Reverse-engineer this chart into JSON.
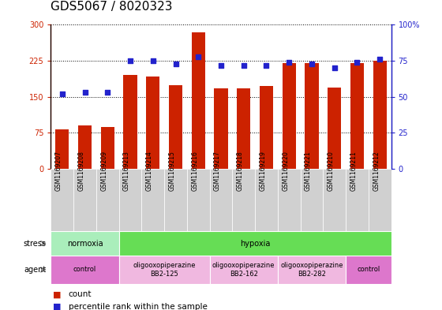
{
  "title": "GDS5067 / 8020323",
  "samples": [
    "GSM1169207",
    "GSM1169208",
    "GSM1169209",
    "GSM1169213",
    "GSM1169214",
    "GSM1169215",
    "GSM1169216",
    "GSM1169217",
    "GSM1169218",
    "GSM1169219",
    "GSM1169220",
    "GSM1169221",
    "GSM1169210",
    "GSM1169211",
    "GSM1169212"
  ],
  "counts": [
    82,
    90,
    88,
    195,
    193,
    175,
    285,
    168,
    167,
    172,
    220,
    220,
    170,
    220,
    225
  ],
  "percentile_ranks": [
    52,
    53,
    53,
    75,
    75,
    73,
    78,
    72,
    72,
    72,
    74,
    73,
    70,
    74,
    76
  ],
  "ylim_left": [
    0,
    300
  ],
  "ylim_right": [
    0,
    100
  ],
  "yticks_left": [
    0,
    75,
    150,
    225,
    300
  ],
  "ytick_labels_left": [
    "0",
    "75",
    "150",
    "225",
    "300"
  ],
  "yticks_right": [
    0,
    25,
    50,
    75,
    100
  ],
  "ytick_labels_right": [
    "0",
    "25",
    "50",
    "75",
    "100%"
  ],
  "bar_color": "#cc2200",
  "dot_color": "#2222cc",
  "bg_color": "#ffffff",
  "plot_bg_color": "#ffffff",
  "tick_label_bg": "#dddddd",
  "stress_row": [
    {
      "label": "normoxia",
      "start": 0,
      "end": 3,
      "color": "#aaeebb"
    },
    {
      "label": "hypoxia",
      "start": 3,
      "end": 15,
      "color": "#66dd55"
    }
  ],
  "agent_row": [
    {
      "label": "control",
      "start": 0,
      "end": 3,
      "color": "#dd77cc"
    },
    {
      "label": "oligooxopiperazine\nBB2-125",
      "start": 3,
      "end": 7,
      "color": "#f0b8e0"
    },
    {
      "label": "oligooxopiperazine\nBB2-162",
      "start": 7,
      "end": 10,
      "color": "#f0b8e0"
    },
    {
      "label": "oligooxopiperazine\nBB2-282",
      "start": 10,
      "end": 13,
      "color": "#f0b8e0"
    },
    {
      "label": "control",
      "start": 13,
      "end": 15,
      "color": "#dd77cc"
    }
  ],
  "dotted_line_color": "black",
  "title_fontsize": 11,
  "tick_fontsize": 7,
  "label_fontsize": 8
}
